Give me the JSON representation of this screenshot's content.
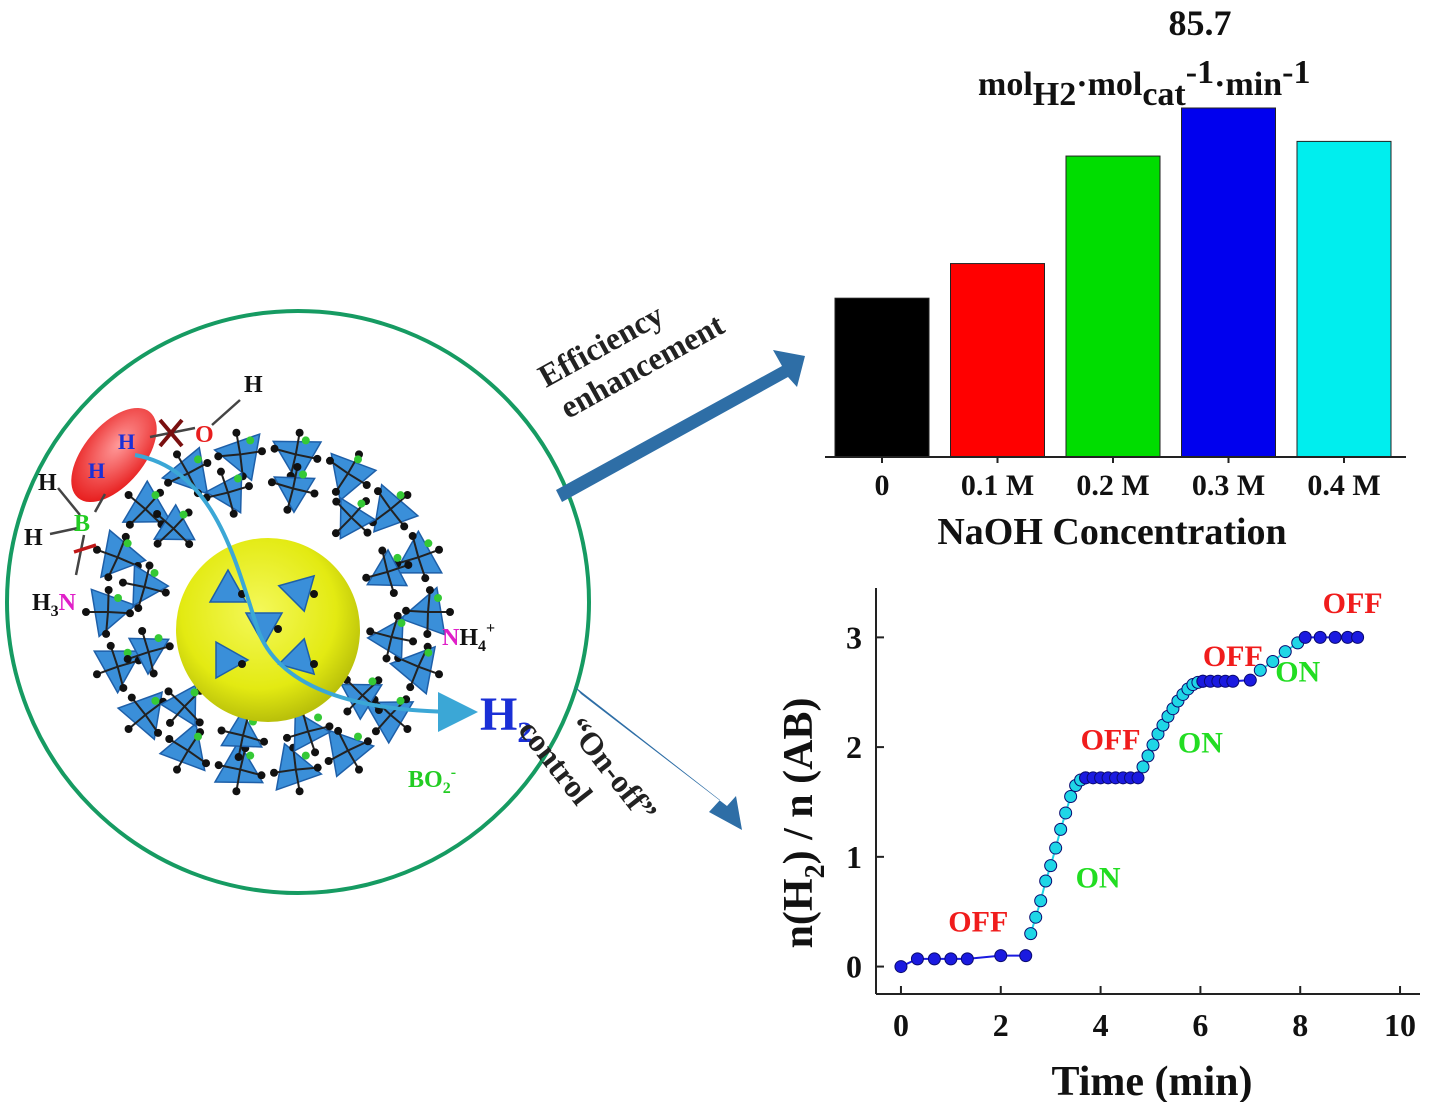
{
  "figure": {
    "colors": {
      "circle_stroke": "#169b62",
      "arrow": "#2e6ea6",
      "framework": "#3a8fd9",
      "core": "#e8ee1a",
      "h2": "#1a2fd6",
      "off": "#f01c1c",
      "on": "#22dd22"
    },
    "arrow_top_label": [
      "Efficiency",
      "enhancement"
    ],
    "arrow_bottom_label": [
      "“On-off”",
      "control"
    ],
    "scheme": {
      "h": "H",
      "o": "O",
      "b": "B",
      "h3": "H",
      "h3_sub": "3",
      "n": "N",
      "nh4_n": "N",
      "nh4_rest": "H",
      "nh4_sub": "4",
      "nh4_sup": "+",
      "h2_main": "H",
      "h2_sub": "2",
      "bo2_main": "BO",
      "bo2_sub": "2",
      "bo2_sup": "-"
    }
  },
  "chart_data": [
    {
      "type": "bar",
      "annotation_value": "85.7",
      "annotation_unit": {
        "a": "mol",
        "a_sub": "H2",
        "b": "·mol",
        "b_sub": "cat",
        "b_sup": "-1",
        "c": "·min",
        "c_sup": "-1"
      },
      "categories": [
        "0",
        "0.1 M",
        "0.2 M",
        "0.3 M",
        "0.4 M"
      ],
      "values": [
        39.0,
        47.5,
        73.9,
        85.7,
        77.5
      ],
      "colors": [
        "#000000",
        "#ff0000",
        "#00dd00",
        "#0000ee",
        "#00eeee"
      ],
      "xlabel": "NaOH Concentration",
      "ylim": [
        0,
        95
      ]
    },
    {
      "type": "scatter",
      "xlabel": "Time (min)",
      "ylabel": {
        "pre": "n(H",
        "sub": "2",
        "post": ") / n (AB)"
      },
      "xlim": [
        -0.5,
        10.4
      ],
      "ylim": [
        -0.25,
        3.45
      ],
      "xticks": [
        0,
        2,
        4,
        6,
        8,
        10
      ],
      "yticks": [
        0,
        1,
        2,
        3
      ],
      "series": [
        {
          "color": "#1a1ae0",
          "segment": 1,
          "x": [
            0.0,
            0.33,
            0.67,
            1.0,
            1.33,
            2.0,
            2.5
          ],
          "y": [
            0.0,
            0.07,
            0.07,
            0.07,
            0.07,
            0.1,
            0.1
          ]
        },
        {
          "color": "#1fd6e6",
          "segment": 2,
          "x": [
            2.6,
            2.7,
            2.8,
            2.9,
            3.0,
            3.1,
            3.2,
            3.3,
            3.4,
            3.5,
            3.6,
            3.7
          ],
          "y": [
            0.3,
            0.45,
            0.6,
            0.78,
            0.92,
            1.08,
            1.25,
            1.4,
            1.55,
            1.65,
            1.7,
            1.72
          ]
        },
        {
          "color": "#1a1ae0",
          "segment": 3,
          "x": [
            3.7,
            3.85,
            4.0,
            4.15,
            4.3,
            4.45,
            4.6,
            4.75
          ],
          "y": [
            1.72,
            1.72,
            1.72,
            1.72,
            1.72,
            1.72,
            1.72,
            1.72
          ]
        },
        {
          "color": "#1fd6e6",
          "segment": 4,
          "x": [
            4.85,
            4.95,
            5.05,
            5.15,
            5.25,
            5.35,
            5.45,
            5.55,
            5.65,
            5.75,
            5.85,
            5.95,
            6.05
          ],
          "y": [
            1.82,
            1.92,
            2.02,
            2.12,
            2.2,
            2.28,
            2.35,
            2.42,
            2.48,
            2.53,
            2.57,
            2.59,
            2.6
          ]
        },
        {
          "color": "#1a1ae0",
          "segment": 5,
          "x": [
            6.05,
            6.2,
            6.35,
            6.5,
            6.65,
            7.0
          ],
          "y": [
            2.6,
            2.6,
            2.6,
            2.6,
            2.6,
            2.61
          ]
        },
        {
          "color": "#1fd6e6",
          "segment": 6,
          "x": [
            7.2,
            7.45,
            7.7,
            7.95
          ],
          "y": [
            2.7,
            2.78,
            2.87,
            2.95
          ]
        },
        {
          "color": "#1a1ae0",
          "segment": 7,
          "x": [
            8.1,
            8.4,
            8.7,
            8.95,
            9.15
          ],
          "y": [
            3.0,
            3.0,
            3.0,
            3.0,
            3.0
          ]
        }
      ],
      "annotations": [
        {
          "text": "OFF",
          "color": "#f01c1c",
          "x": 1.55,
          "y": 0.32
        },
        {
          "text": "ON",
          "color": "#22dd22",
          "x": 3.95,
          "y": 0.72
        },
        {
          "text": "OFF",
          "color": "#f01c1c",
          "x": 4.2,
          "y": 1.98
        },
        {
          "text": "ON",
          "color": "#22dd22",
          "x": 6.0,
          "y": 1.95
        },
        {
          "text": "OFF",
          "color": "#f01c1c",
          "x": 6.65,
          "y": 2.74
        },
        {
          "text": "ON",
          "color": "#22dd22",
          "x": 7.95,
          "y": 2.6
        },
        {
          "text": "OFF",
          "color": "#f01c1c",
          "x": 9.05,
          "y": 3.22
        }
      ]
    }
  ]
}
